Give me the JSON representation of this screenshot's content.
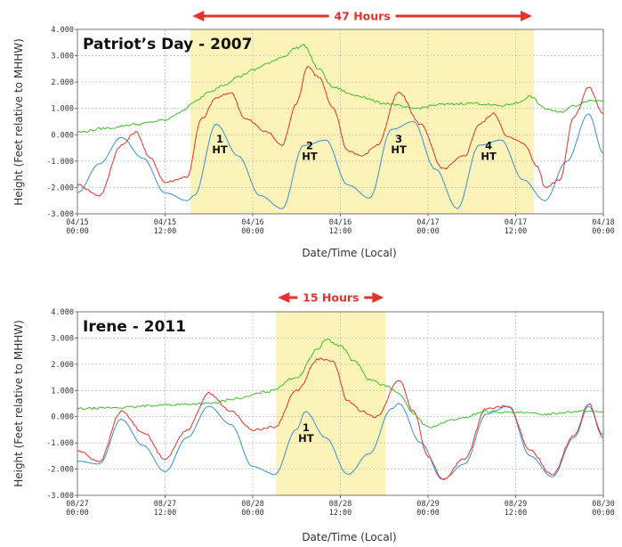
{
  "chart_data": [
    {
      "type": "line",
      "title": "Patriot’s Day - 2007",
      "xlabel": "Date/Time (Local)",
      "ylabel": "Height (Feet relative to MHHW)",
      "ylim": [
        -3,
        4
      ],
      "yticks": [
        "-3.000",
        "-2.000",
        "-1.000",
        "0.000",
        "1.000",
        "2.000",
        "3.000",
        "4.000"
      ],
      "xlim_hours": [
        0,
        72
      ],
      "xtick_hours": [
        0,
        12,
        24,
        36,
        48,
        60,
        72
      ],
      "xticks": [
        [
          "04/15",
          "00:00"
        ],
        [
          "04/15",
          "12:00"
        ],
        [
          "04/16",
          "00:00"
        ],
        [
          "04/16",
          "12:00"
        ],
        [
          "04/17",
          "00:00"
        ],
        [
          "04/17",
          "12:00"
        ],
        [
          "04/18",
          "00:00"
        ]
      ],
      "highlight": {
        "start_hour": 15.5,
        "end_hour": 62.5,
        "label": "47 Hours"
      },
      "annotations": [
        {
          "lines": [
            "1",
            "HT"
          ],
          "x_hour": 19.5,
          "y": -0.3
        },
        {
          "lines": [
            "2",
            "HT"
          ],
          "x_hour": 31.8,
          "y": -0.55
        },
        {
          "lines": [
            "3",
            "HT"
          ],
          "x_hour": 44.0,
          "y": -0.3
        },
        {
          "lines": [
            "4",
            "HT"
          ],
          "x_hour": 56.3,
          "y": -0.55
        }
      ],
      "grid": true,
      "series": [
        {
          "color": "#3a8fd9",
          "x": [
            0,
            3,
            6,
            9,
            12,
            15,
            16,
            19,
            22,
            25,
            28,
            31,
            34,
            37,
            40,
            43,
            46,
            49,
            52,
            55,
            58,
            61,
            64,
            67,
            70,
            72
          ],
          "y": [
            -2.2,
            -1.1,
            -0.1,
            -0.9,
            -2.2,
            -2.5,
            -2.3,
            0.4,
            -0.8,
            -2.3,
            -2.8,
            -0.4,
            -0.2,
            -1.9,
            -2.4,
            0.2,
            0.5,
            -1.3,
            -2.8,
            -0.4,
            -0.2,
            -1.7,
            -2.5,
            -1.0,
            0.8,
            -0.7
          ]
        },
        {
          "color": "#e5322d",
          "x": [
            0,
            3,
            6,
            8,
            10,
            12,
            15,
            17,
            19,
            21,
            23,
            26,
            28,
            30,
            31.5,
            33,
            35,
            37,
            39,
            41,
            44,
            47,
            50,
            53,
            55,
            57,
            59,
            61,
            63,
            64,
            66,
            68,
            70,
            72
          ],
          "y": [
            -1.9,
            -2.3,
            -0.4,
            0.1,
            -0.9,
            -1.8,
            -1.6,
            0.6,
            1.4,
            1.6,
            0.6,
            0.1,
            -0.4,
            1.2,
            2.6,
            2.2,
            1.0,
            -0.6,
            -0.8,
            -0.4,
            1.6,
            0.4,
            -1.3,
            -0.8,
            0.4,
            0.8,
            -0.1,
            -0.3,
            -1.2,
            -2.0,
            -1.7,
            0.7,
            1.8,
            0.8
          ]
        },
        {
          "color": "#3fbf2c",
          "x": [
            0,
            4,
            8,
            12,
            14,
            16,
            18,
            20,
            22,
            24,
            26,
            28,
            30,
            31,
            33,
            35,
            38,
            42,
            46,
            50,
            54,
            58,
            60,
            62,
            64,
            66,
            68,
            70,
            72
          ],
          "y": [
            0.1,
            0.25,
            0.4,
            0.55,
            0.85,
            1.25,
            1.6,
            1.9,
            2.2,
            2.45,
            2.7,
            2.95,
            3.3,
            3.4,
            2.5,
            1.8,
            1.5,
            1.2,
            1.0,
            1.15,
            1.2,
            1.1,
            1.2,
            1.45,
            1.0,
            0.85,
            1.1,
            1.3,
            1.3
          ]
        }
      ]
    },
    {
      "type": "line",
      "title": "Irene - 2011",
      "xlabel": "Date/Time (Local)",
      "ylabel": "Height (Feet relative to MHHW)",
      "ylim": [
        -3,
        4
      ],
      "yticks": [
        "-3.000",
        "-2.000",
        "-1.000",
        "0.000",
        "1.000",
        "2.000",
        "3.000",
        "4.000"
      ],
      "xlim_hours": [
        0,
        72
      ],
      "xtick_hours": [
        0,
        12,
        24,
        36,
        48,
        60,
        72
      ],
      "xticks": [
        [
          "08/27",
          "00:00"
        ],
        [
          "08/27",
          "12:00"
        ],
        [
          "08/28",
          "00:00"
        ],
        [
          "08/28",
          "12:00"
        ],
        [
          "08/29",
          "00:00"
        ],
        [
          "08/29",
          "12:00"
        ],
        [
          "08/30",
          "00:00"
        ]
      ],
      "highlight": {
        "start_hour": 27.2,
        "end_hour": 42.2,
        "label": "15 Hours"
      },
      "annotations": [
        {
          "lines": [
            "1",
            "HT"
          ],
          "x_hour": 31.3,
          "y": -0.55
        }
      ],
      "grid": true,
      "series": [
        {
          "color": "#3a8fd9",
          "x": [
            0,
            3,
            6,
            9,
            12,
            15,
            18,
            21,
            24,
            27,
            30,
            31.2,
            34,
            37,
            40,
            43,
            44,
            47,
            50,
            53,
            56,
            59,
            62,
            65,
            68,
            70,
            72
          ],
          "y": [
            -1.7,
            -1.8,
            -0.1,
            -1.1,
            -2.1,
            -0.8,
            0.4,
            -0.3,
            -1.9,
            -2.2,
            -0.5,
            0.2,
            -0.8,
            -2.2,
            -1.4,
            0.3,
            0.5,
            -1.0,
            -2.4,
            -1.8,
            0.1,
            0.4,
            -1.5,
            -2.3,
            -0.8,
            0.4,
            -0.7
          ]
        },
        {
          "color": "#e5322d",
          "x": [
            0,
            3,
            6,
            9,
            12,
            15,
            18,
            21,
            24,
            27,
            30,
            33,
            35,
            37,
            39,
            41,
            44,
            46,
            48,
            50,
            53,
            56,
            59,
            62,
            65,
            68,
            70,
            72
          ],
          "y": [
            -1.3,
            -1.7,
            0.2,
            -0.6,
            -1.6,
            -0.5,
            0.9,
            0.2,
            -0.5,
            -0.4,
            1.0,
            2.2,
            2.1,
            0.6,
            0.2,
            0.0,
            1.4,
            0.2,
            -1.5,
            -2.4,
            -1.6,
            0.3,
            0.4,
            -1.3,
            -2.2,
            -0.7,
            0.5,
            -0.8
          ]
        },
        {
          "color": "#3fbf2c",
          "x": [
            0,
            6,
            12,
            18,
            22,
            26,
            30,
            33,
            34,
            36,
            38,
            40,
            42,
            44,
            46,
            48,
            52,
            56,
            60,
            64,
            68,
            72
          ],
          "y": [
            0.3,
            0.35,
            0.45,
            0.5,
            0.7,
            0.95,
            1.5,
            2.6,
            2.95,
            2.7,
            2.1,
            1.4,
            1.2,
            0.9,
            0.1,
            -0.4,
            -0.1,
            0.2,
            0.15,
            0.1,
            0.2,
            0.2
          ]
        }
      ]
    }
  ]
}
